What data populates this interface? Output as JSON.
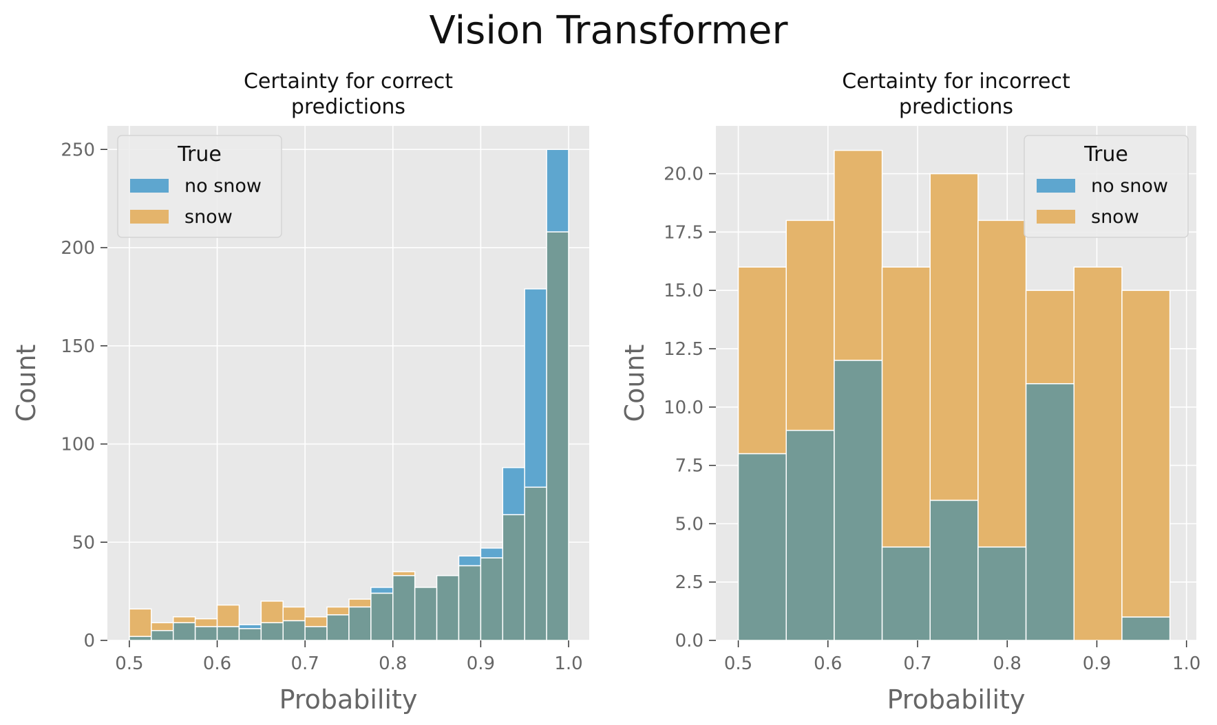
{
  "figure": {
    "suptitle": "Vision Transformer"
  },
  "colors": {
    "background": "#ffffff",
    "panel": "#e8e8e8",
    "grid": "#ffffff",
    "no_snow": "#5ea6cf",
    "snow": "#e4b46b",
    "overlap": "#739a96",
    "tick_text": "#666666",
    "axis_label": "#666666"
  },
  "chart_data": [
    {
      "type": "bar",
      "histogram": true,
      "title": "Certainty for correct\npredictions",
      "xlabel": "Probability",
      "ylabel": "Count",
      "xlim": [
        0.475,
        1.0235
      ],
      "ylim": [
        0,
        262
      ],
      "xticks": [
        0.5,
        0.6,
        0.7,
        0.8,
        0.9,
        1.0
      ],
      "xtick_labels": [
        "0.5",
        "0.6",
        "0.7",
        "0.8",
        "0.9",
        "1.0"
      ],
      "yticks": [
        0,
        50,
        100,
        150,
        200,
        250
      ],
      "ytick_labels": [
        "0",
        "50",
        "100",
        "150",
        "200",
        "250"
      ],
      "grid": true,
      "legend": {
        "title": "True",
        "placement": "top-left",
        "entries": [
          "no snow",
          "snow"
        ]
      },
      "bin_edges": [
        0.5,
        0.525,
        0.55,
        0.575,
        0.6,
        0.625,
        0.65,
        0.675,
        0.7,
        0.725,
        0.75,
        0.775,
        0.8,
        0.825,
        0.85,
        0.875,
        0.9,
        0.925,
        0.95,
        0.975,
        1.0
      ],
      "series": [
        {
          "name": "no snow",
          "values": [
            2,
            5,
            9,
            7,
            7,
            8,
            9,
            10,
            7,
            13,
            17,
            27,
            33,
            27,
            33,
            43,
            47,
            88,
            179,
            250
          ]
        },
        {
          "name": "snow",
          "values": [
            16,
            9,
            12,
            11,
            18,
            6,
            20,
            17,
            12,
            17,
            21,
            24,
            35,
            27,
            33,
            38,
            42,
            64,
            78,
            208
          ]
        }
      ]
    },
    {
      "type": "bar",
      "histogram": true,
      "title": "Certainty for incorrect\npredictions",
      "xlabel": "Probability",
      "ylabel": "Count",
      "xlim": [
        0.475,
        1.011
      ],
      "ylim": [
        0,
        22.05
      ],
      "xticks": [
        0.5,
        0.6,
        0.7,
        0.8,
        0.9,
        1.0
      ],
      "xtick_labels": [
        "0.5",
        "0.6",
        "0.7",
        "0.8",
        "0.9",
        "1.0"
      ],
      "yticks": [
        0,
        2.5,
        5,
        7.5,
        10,
        12.5,
        15,
        17.5,
        20
      ],
      "ytick_labels": [
        "0.0",
        "2.5",
        "5.0",
        "7.5",
        "10.0",
        "12.5",
        "15.0",
        "17.5",
        "20.0"
      ],
      "grid": true,
      "legend": {
        "title": "True",
        "placement": "top-right",
        "entries": [
          "no snow",
          "snow"
        ]
      },
      "bin_edges": [
        0.5,
        0.5535,
        0.607,
        0.6605,
        0.714,
        0.7675,
        0.821,
        0.8745,
        0.928,
        0.9815
      ],
      "series": [
        {
          "name": "no snow",
          "values": [
            8,
            9,
            12,
            4,
            6,
            4,
            11,
            0,
            1
          ]
        },
        {
          "name": "snow",
          "values": [
            16,
            18,
            21,
            16,
            20,
            18,
            15,
            16,
            15
          ]
        }
      ]
    }
  ]
}
